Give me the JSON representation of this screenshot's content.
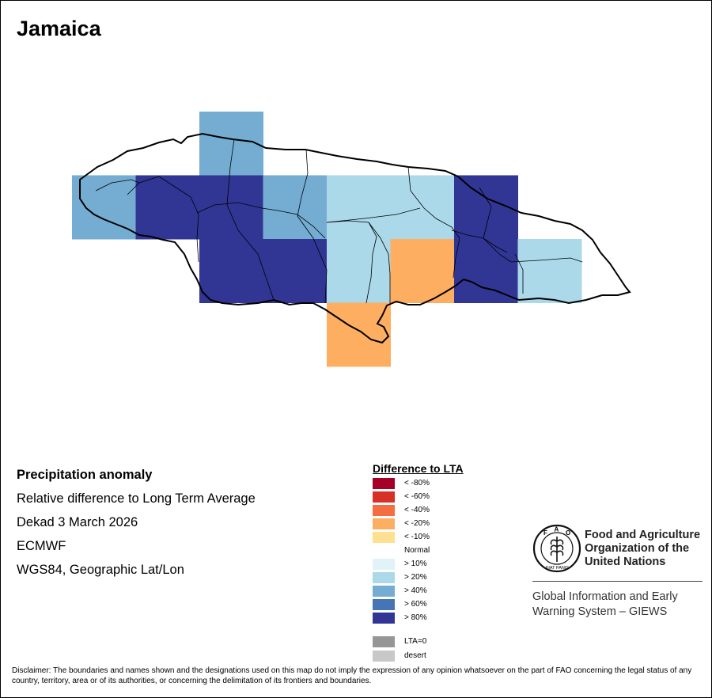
{
  "map_title": "Jamaica",
  "info": {
    "heading": "Precipitation anomaly",
    "description": "Relative difference to Long Term Average",
    "period": "Dekad 3 March 2026",
    "model": "ECMWF",
    "projection": "WGS84, Geographic Lat/Lon"
  },
  "legend": {
    "title": "Difference to LTA",
    "items": [
      {
        "label": "< -80%",
        "color": "#a50026"
      },
      {
        "label": "< -60%",
        "color": "#d73027"
      },
      {
        "label": "< -40%",
        "color": "#f46d43"
      },
      {
        "label": "< -20%",
        "color": "#fdae61"
      },
      {
        "label": "< -10%",
        "color": "#fee090"
      },
      {
        "label": "Normal",
        "color": "#ffffff"
      },
      {
        "label": "> 10%",
        "color": "#e0f3f8"
      },
      {
        "label": "> 20%",
        "color": "#abd9e9"
      },
      {
        "label": "> 40%",
        "color": "#74add1"
      },
      {
        "label": "> 60%",
        "color": "#4575b4"
      },
      {
        "label": "> 80%",
        "color": "#313695"
      }
    ],
    "extra": [
      {
        "label": "LTA=0",
        "color": "#969696"
      },
      {
        "label": "desert",
        "color": "#c8c8c8"
      }
    ]
  },
  "grid_cells": [
    {
      "row": 0,
      "col": 2,
      "class": "> 40%"
    },
    {
      "row": 1,
      "col": 0,
      "class": "> 40%"
    },
    {
      "row": 1,
      "col": 1,
      "class": "> 80%"
    },
    {
      "row": 1,
      "col": 2,
      "class": "> 80%"
    },
    {
      "row": 1,
      "col": 3,
      "class": "> 40%"
    },
    {
      "row": 1,
      "col": 4,
      "class": "> 20%"
    },
    {
      "row": 1,
      "col": 5,
      "class": "> 20%"
    },
    {
      "row": 1,
      "col": 6,
      "class": "> 80%"
    },
    {
      "row": 2,
      "col": 2,
      "class": "> 80%"
    },
    {
      "row": 2,
      "col": 3,
      "class": "> 80%"
    },
    {
      "row": 2,
      "col": 4,
      "class": "> 20%"
    },
    {
      "row": 2,
      "col": 5,
      "class": "< -20%"
    },
    {
      "row": 2,
      "col": 6,
      "class": "> 80%"
    },
    {
      "row": 2,
      "col": 7,
      "class": "> 20%"
    },
    {
      "row": 3,
      "col": 4,
      "class": "< -20%"
    }
  ],
  "organization": {
    "logo_text": "FAO",
    "logo_motto": "FIAT PANIS",
    "name": "Food and Agriculture Organization of the United Nations",
    "system": "Global Information and Early Warning System – GIEWS"
  },
  "disclaimer": "Disclaimer: The boundaries and names shown and the designations used on this map do not imply the expression of any opinion whatsoever on the part of FAO concerning the legal status of any country, territory, area or of its authorities, or concerning the delimitation of its frontiers and boundaries."
}
